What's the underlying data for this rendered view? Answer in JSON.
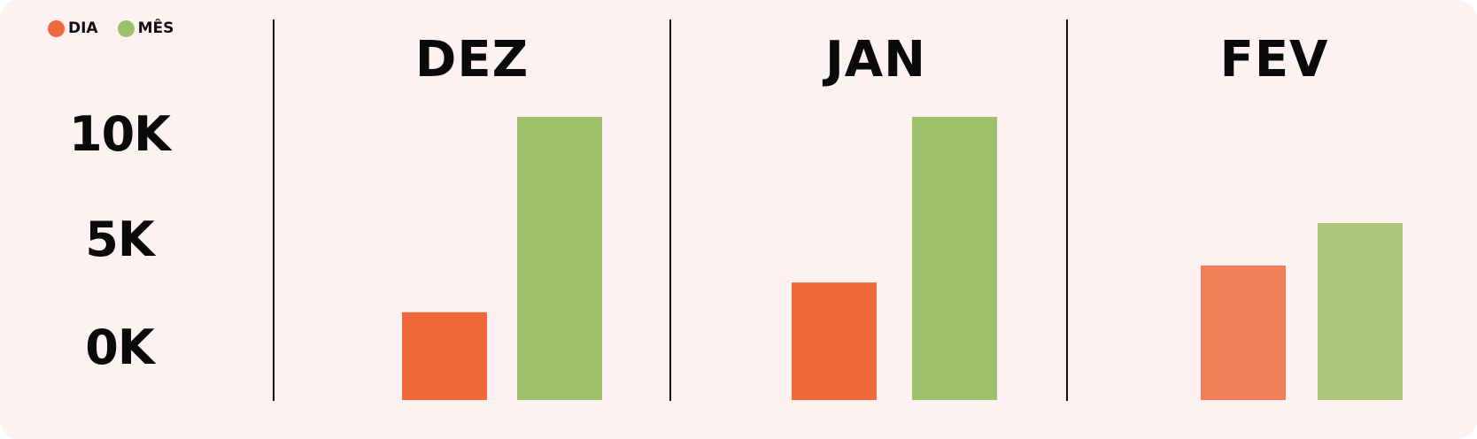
{
  "legend": [
    {
      "label": "DIA",
      "color": "#f06a39"
    },
    {
      "label": "MÊS",
      "color": "#9dc06a"
    }
  ],
  "chart_data": {
    "type": "bar",
    "categories": [
      "DEZ",
      "JAN",
      "FEV"
    ],
    "series": [
      {
        "name": "DIA",
        "values": [
          3100,
          4150,
          4750
        ],
        "colors": [
          "#f06a39",
          "#f06a39",
          "#f27f57"
        ]
      },
      {
        "name": "MÊS",
        "values": [
          10000,
          10000,
          6250
        ],
        "colors": [
          "#9dc06a",
          "#9dc06a",
          "#abc77b"
        ]
      }
    ],
    "yticks": [
      "10K",
      "5K",
      "0K"
    ],
    "ylim": [
      0,
      10000
    ],
    "grid": false,
    "legend_position": "top-left"
  }
}
